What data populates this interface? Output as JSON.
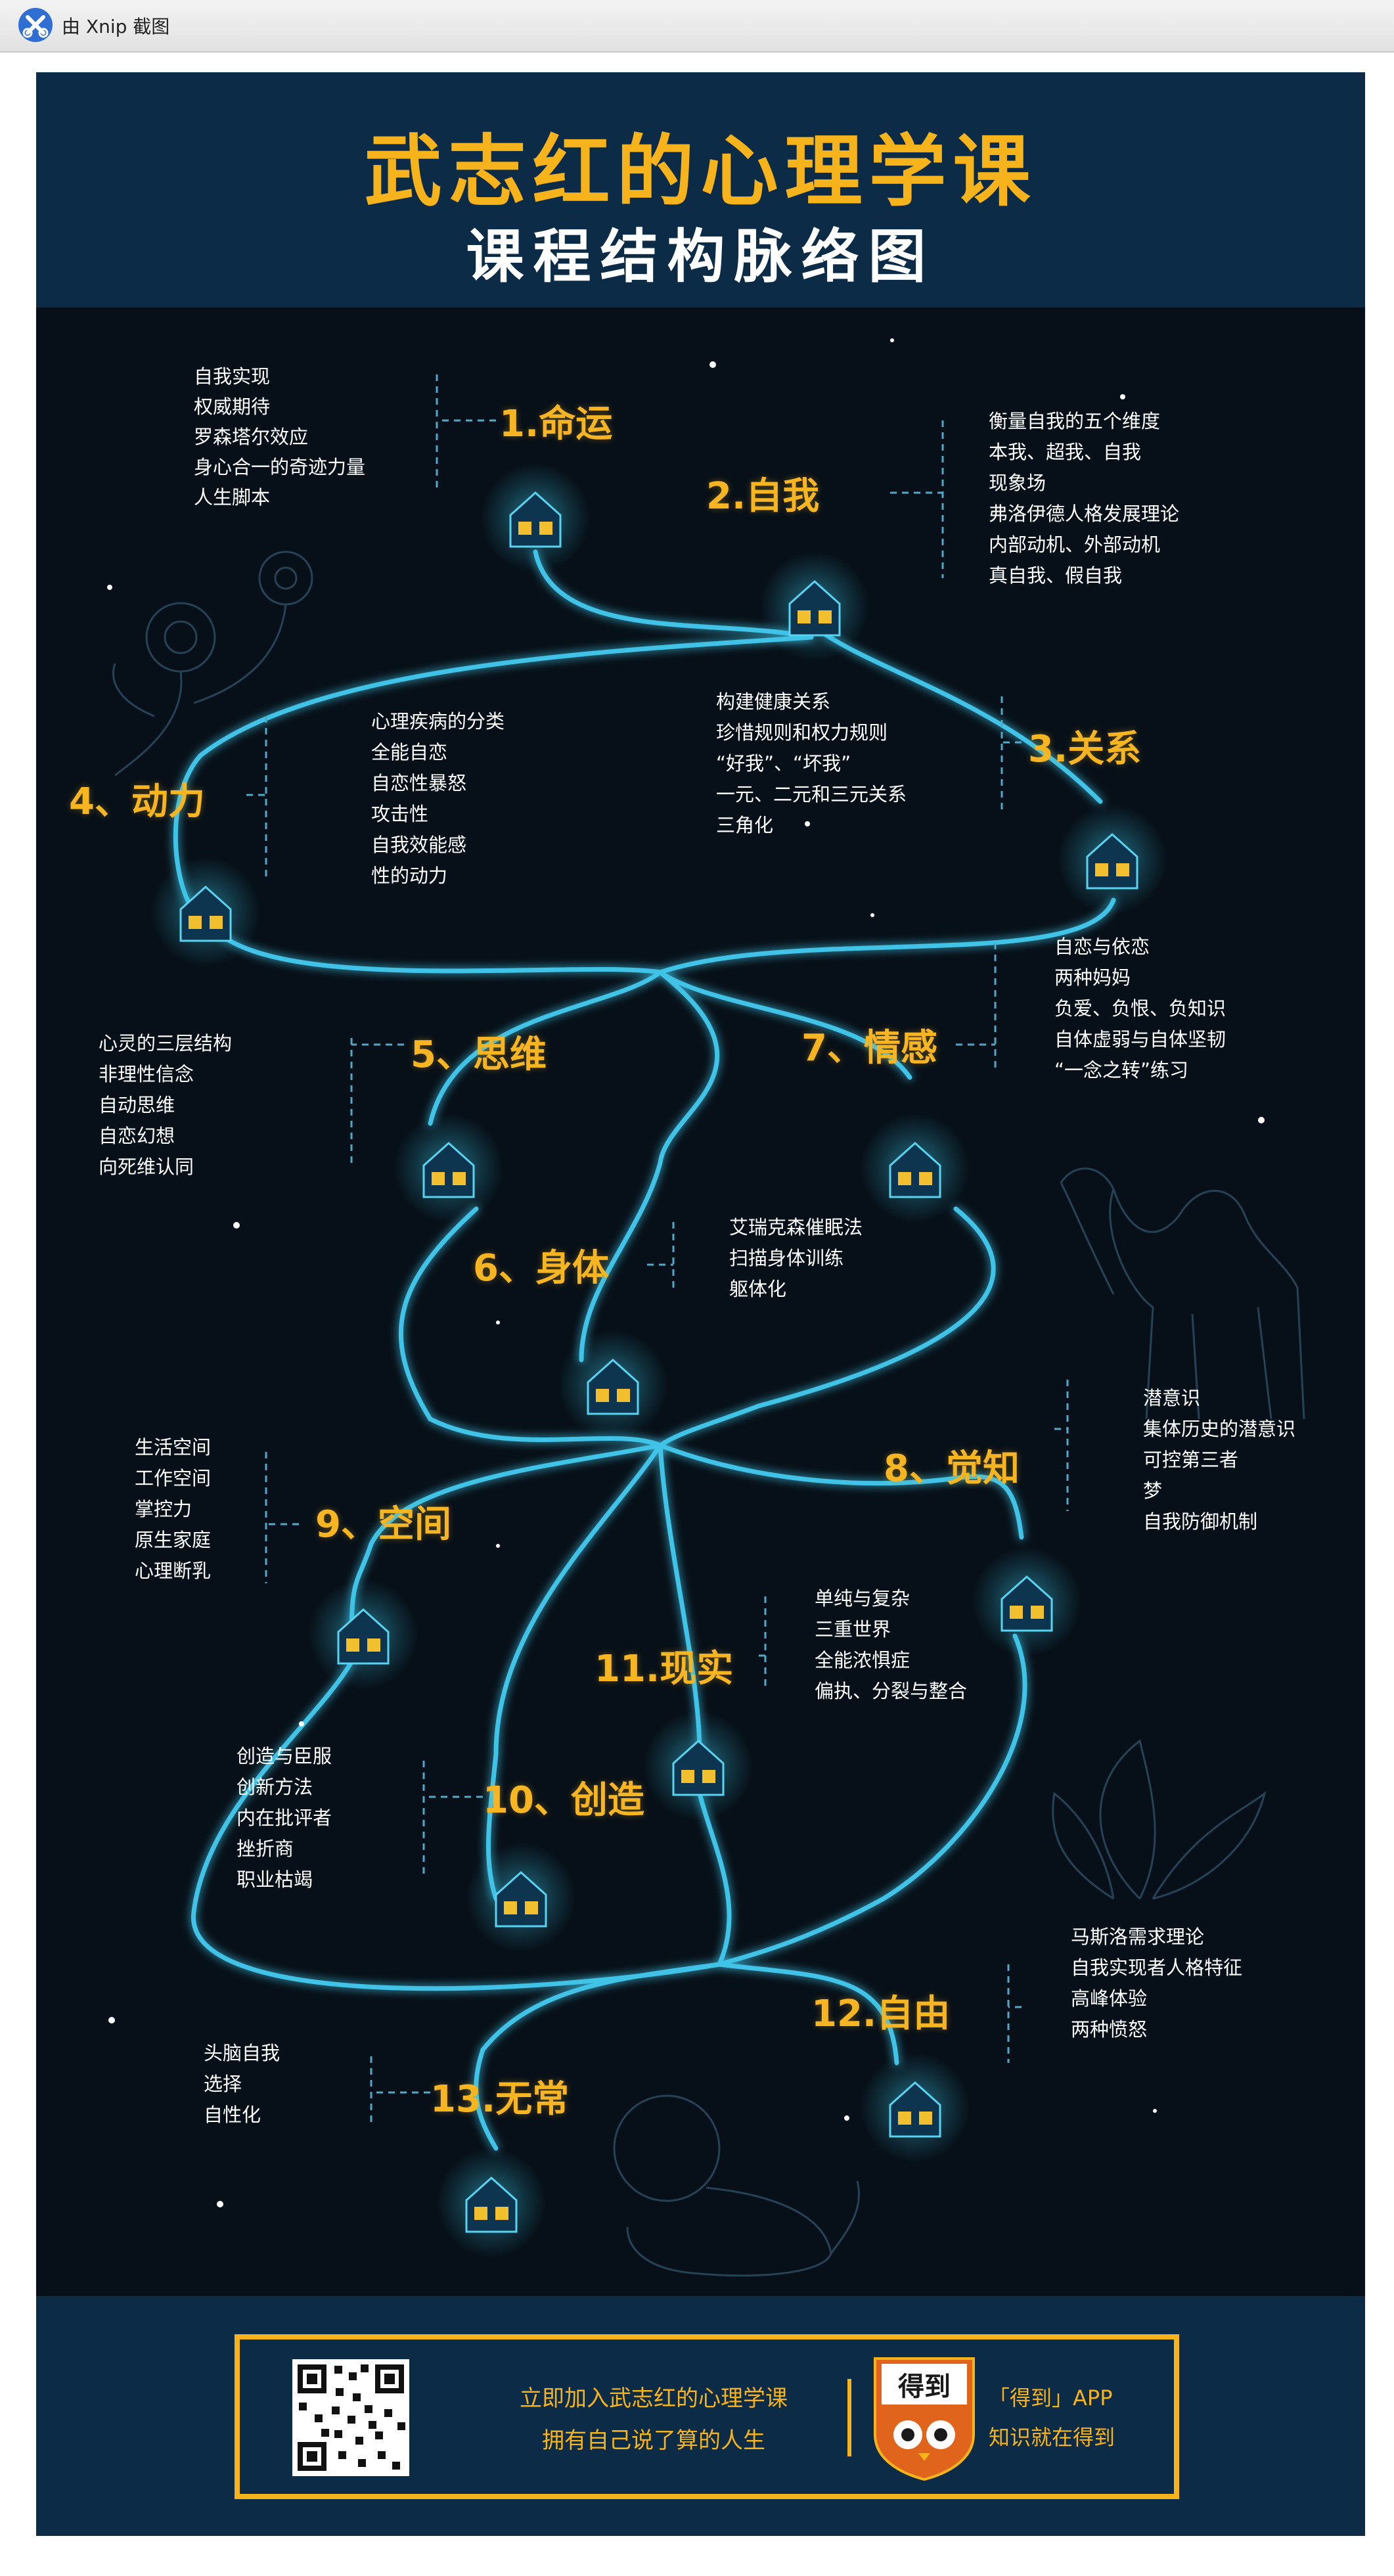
{
  "window": {
    "title": "由 Xnip 截图"
  },
  "poster": {
    "title": "武志红的心理学课",
    "subtitle": "课程结构脉络图",
    "colors": {
      "accent": "#f6b31b",
      "path": "#3fc3e6",
      "background": "#071018",
      "band": "#0c2b47"
    }
  },
  "topics": [
    {
      "title": "1.命运",
      "items": [
        "自我实现",
        "权威期待",
        "罗森塔尔效应",
        "身心合一的奇迹力量",
        "人生脚本"
      ]
    },
    {
      "title": "2.自我",
      "items": [
        "衡量自我的五个维度",
        "本我、超我、自我",
        "现象场",
        "弗洛伊德人格发展理论",
        "内部动机、外部动机",
        "真自我、假自我"
      ]
    },
    {
      "title": "3.关系",
      "items": [
        "构建健康关系",
        "珍惜规则和权力规则",
        "“好我”、“坏我”",
        "一元、二元和三元关系",
        "三角化"
      ]
    },
    {
      "title": "4、动力",
      "items": [
        "心理疾病的分类",
        "全能自恋",
        "自恋性暴怒",
        "攻击性",
        "自我效能感",
        "性的动力"
      ]
    },
    {
      "title": "5、思维",
      "items": [
        "心灵的三层结构",
        "非理性信念",
        "自动思维",
        "自恋幻想",
        "向死维认同"
      ]
    },
    {
      "title": "6、身体",
      "items": [
        "艾瑞克森催眠法",
        "扫描身体训练",
        "躯体化"
      ]
    },
    {
      "title": "7、情感",
      "items": [
        "自恋与依恋",
        "两种妈妈",
        "负爱、负恨、负知识",
        "自体虚弱与自体坚韧",
        "“一念之转”练习"
      ]
    },
    {
      "title": "8、觉知",
      "items": [
        "潜意识",
        "集体历史的潜意识",
        "可控第三者",
        "梦",
        "自我防御机制"
      ]
    },
    {
      "title": "9、空间",
      "items": [
        "生活空间",
        "工作空间",
        "掌控力",
        "原生家庭",
        "心理断乳"
      ]
    },
    {
      "title": "10、创造",
      "items": [
        "创造与臣服",
        "创新方法",
        "内在批评者",
        "挫折商",
        "职业枯竭"
      ]
    },
    {
      "title": "11.现实",
      "items": [
        "单纯与复杂",
        "三重世界",
        "全能浓惧症",
        "偏执、分裂与整合"
      ]
    },
    {
      "title": "12.自由",
      "items": [
        "马斯洛需求理论",
        "自我实现者人格特征",
        "高峰体验",
        "两种愤怒"
      ]
    },
    {
      "title": "13.无常",
      "items": [
        "头脑自我",
        "选择",
        "自性化"
      ]
    }
  ],
  "footer": {
    "line1": "立即加入武志红的心理学课",
    "line2": "拥有自己说了算的人生",
    "logo_text": "得到",
    "app": "「得到」APP",
    "slogan": "知识就在得到"
  },
  "icons": {
    "app": "xnip-icon",
    "house": "house-icon",
    "qr": "qr-code-icon",
    "logo": "owl-logo-icon"
  }
}
